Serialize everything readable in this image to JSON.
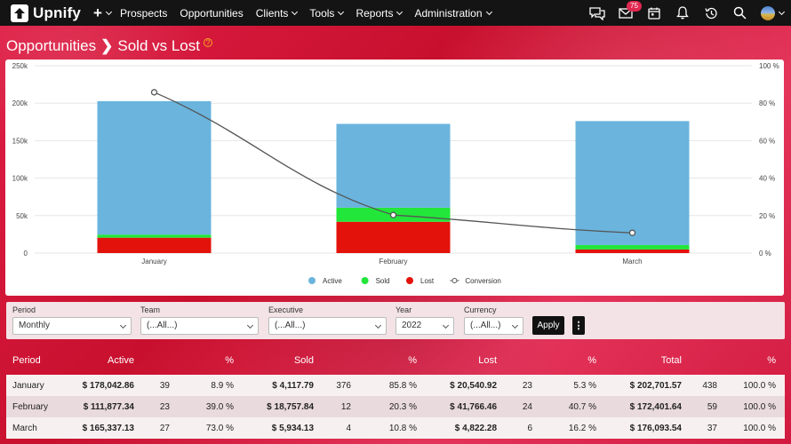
{
  "nav": {
    "logo": "Upnify",
    "plus": "+",
    "items": [
      "Prospects",
      "Opportunities",
      "Clients",
      "Tools",
      "Reports",
      "Administration"
    ],
    "mail_badge": "75"
  },
  "page": {
    "title_part1": "Opportunities",
    "separator": "❯",
    "title_part2": "Sold vs Lost",
    "help": "?"
  },
  "chart_data": {
    "type": "bar",
    "stacked": true,
    "categories": [
      "January",
      "February",
      "March"
    ],
    "series": [
      {
        "name": "Active",
        "color": "#6ab4dd",
        "values": [
          178042.86,
          111877.34,
          165337.13
        ]
      },
      {
        "name": "Sold",
        "color": "#22e63a",
        "values": [
          4117.79,
          18757.84,
          5934.13
        ]
      },
      {
        "name": "Lost",
        "color": "#e3120b",
        "values": [
          20540.92,
          41766.46,
          4822.28
        ]
      },
      {
        "name": "Conversion",
        "type": "line",
        "axis": "right",
        "color": "#555555",
        "values": [
          85.8,
          20.3,
          10.8
        ]
      }
    ],
    "y_left": {
      "min": 0,
      "max": 250000,
      "ticks": [
        "0",
        "50k",
        "100k",
        "150k",
        "200k",
        "250k"
      ]
    },
    "y_right": {
      "min": 0,
      "max": 100,
      "ticks": [
        "0 %",
        "20 %",
        "40 %",
        "60 %",
        "80 %",
        "100 %"
      ]
    },
    "grid": true,
    "legend": "bottom-center"
  },
  "filters": {
    "period": {
      "label": "Period",
      "value": "Monthly"
    },
    "team": {
      "label": "Team",
      "value": "(...All...)"
    },
    "executive": {
      "label": "Executive",
      "value": "(...All...)"
    },
    "year": {
      "label": "Year",
      "value": "2022"
    },
    "currency": {
      "label": "Currency",
      "value": "(...All...)"
    },
    "apply": "Apply",
    "more": "⋮"
  },
  "table": {
    "headers": [
      "Period",
      "Active",
      "",
      "%",
      "Sold",
      "",
      "%",
      "Lost",
      "",
      "%",
      "Total",
      "",
      "%"
    ],
    "rows": [
      [
        "January",
        "$ 178,042.86",
        "39",
        "8.9 %",
        "$ 4,117.79",
        "376",
        "85.8 %",
        "$ 20,540.92",
        "23",
        "5.3 %",
        "$ 202,701.57",
        "438",
        "100.0 %"
      ],
      [
        "February",
        "$ 111,877.34",
        "23",
        "39.0 %",
        "$ 18,757.84",
        "12",
        "20.3 %",
        "$ 41,766.46",
        "24",
        "40.7 %",
        "$ 172,401.64",
        "59",
        "100.0 %"
      ],
      [
        "March",
        "$ 165,337.13",
        "27",
        "73.0 %",
        "$ 5,934.13",
        "4",
        "10.8 %",
        "$ 4,822.28",
        "6",
        "16.2 %",
        "$ 176,093.54",
        "37",
        "100.0 %"
      ]
    ]
  }
}
